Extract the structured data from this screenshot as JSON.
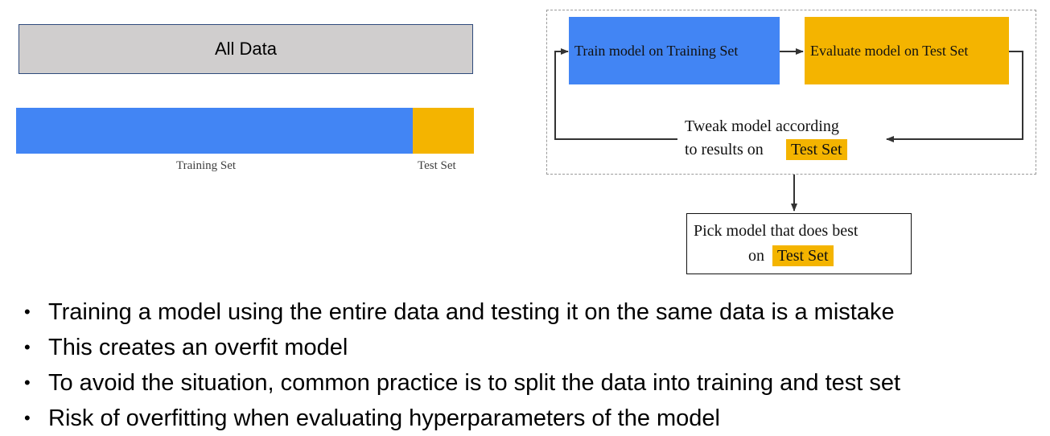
{
  "colors": {
    "training": "#4285f4",
    "test": "#f4b400",
    "all_data": "#d0cece"
  },
  "split_diagram": {
    "all_data_label": "All Data",
    "training_label": "Training Set",
    "test_label": "Test Set",
    "training_fraction": 0.866
  },
  "flow": {
    "train_box": "Train model on Training Set",
    "eval_box": "Evaluate model on Test Set",
    "tweak_line1": "Tweak model according",
    "tweak_line2": "to results on",
    "tweak_highlight": "Test Set",
    "pick_line1": "Pick model that does best",
    "pick_line2": "on",
    "pick_highlight": "Test Set"
  },
  "bullets": [
    "Training a model using the entire data and testing it on the same data is a mistake",
    "This creates an overfit model",
    "To avoid the situation, common practice is to split the data into training and test set",
    "Risk of overfitting when evaluating hyperparameters of the model"
  ],
  "bullet_char": "•"
}
